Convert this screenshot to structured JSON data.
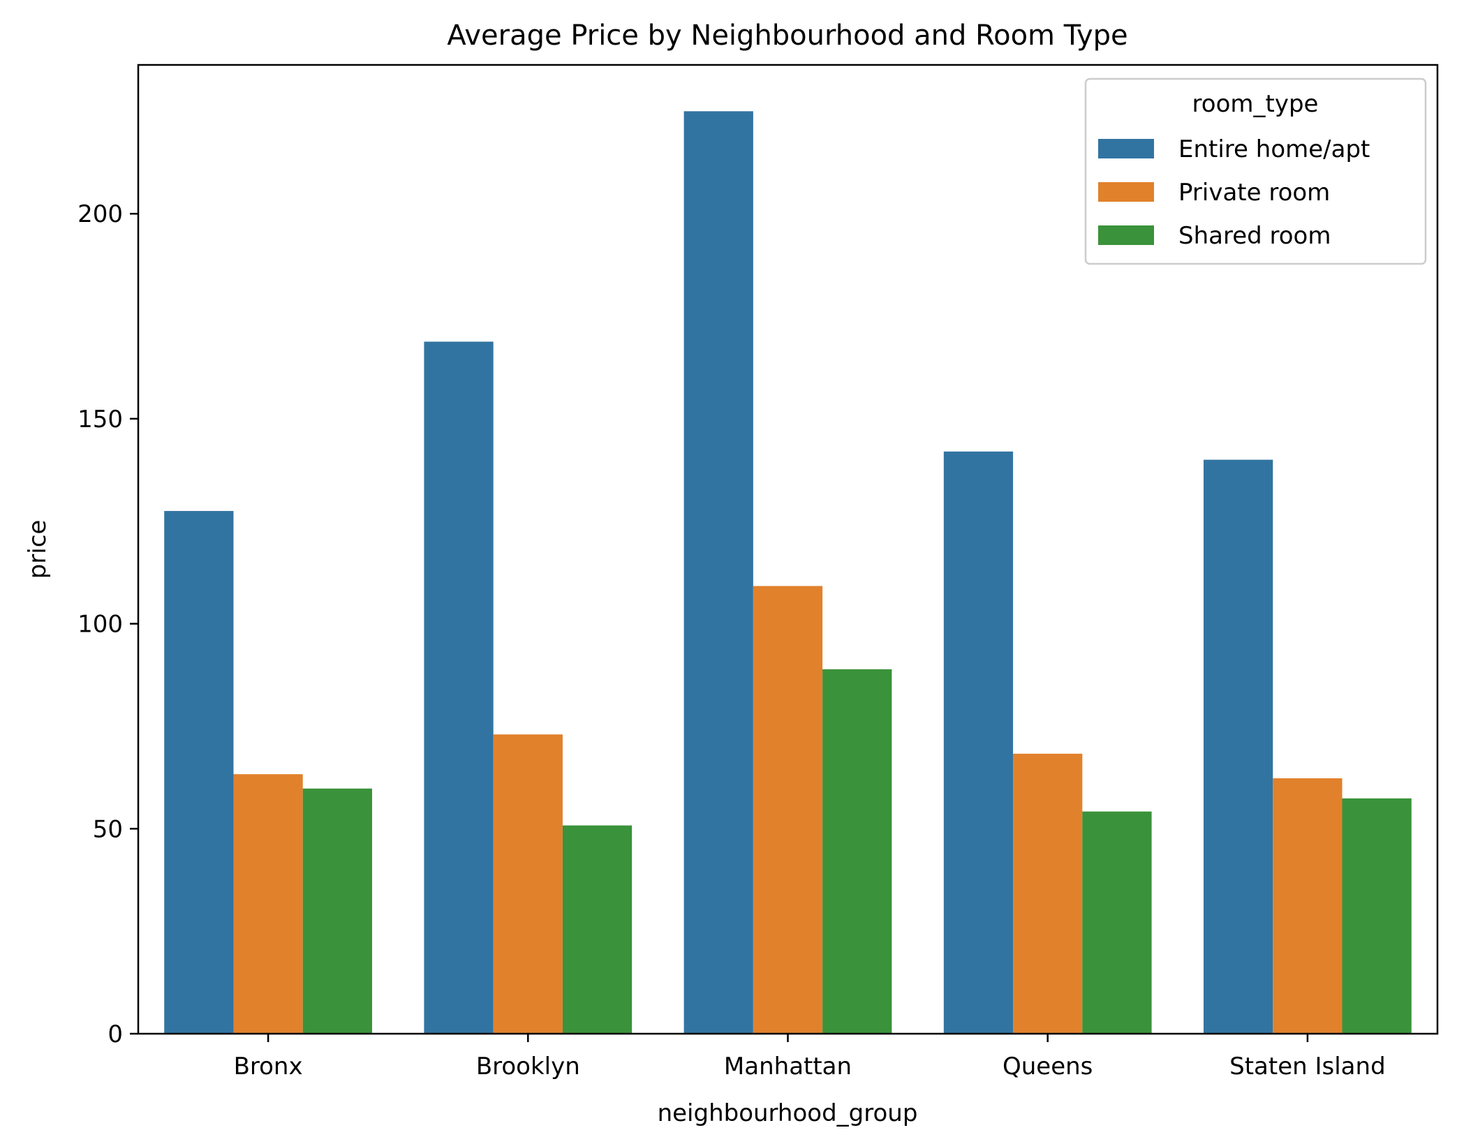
{
  "chart_data": {
    "type": "bar",
    "title": "Average Price by Neighbourhood and Room Type",
    "xlabel": "neighbourhood_group",
    "ylabel": "price",
    "categories": [
      "Bronx",
      "Brooklyn",
      "Manhattan",
      "Queens",
      "Staten Island"
    ],
    "series": [
      {
        "name": "Entire home/apt",
        "values": [
          127.5,
          168.8,
          225.0,
          142.0,
          140.0
        ],
        "color": "#3274a1"
      },
      {
        "name": "Private room",
        "values": [
          63.3,
          73.0,
          109.2,
          68.3,
          62.3
        ],
        "color": "#e1812c"
      },
      {
        "name": "Shared room",
        "values": [
          59.8,
          50.8,
          88.9,
          54.2,
          57.4
        ],
        "color": "#3a923a"
      }
    ],
    "yticks": [
      0,
      50,
      100,
      150,
      200
    ],
    "ylim": [
      0,
      236.3
    ],
    "grid": false,
    "legend": {
      "title": "room_type",
      "placement": "top-right"
    }
  }
}
